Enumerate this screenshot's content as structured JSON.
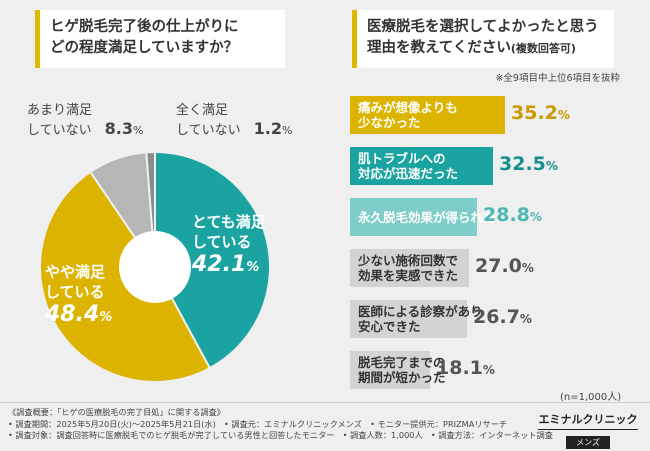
{
  "left_title": {
    "line1": "ヒゲ脱毛完了後の仕上がりに",
    "line2": "どの程度満足していますか？"
  },
  "right_title": {
    "line1": "医療脱毛を選択してよかったと思う",
    "line2_main": "理由を教えてください",
    "line2_small": "(複数回答可)"
  },
  "note": "※全9項目中上位6項目を抜粋",
  "sample_size": "(n=1,000人)",
  "chart_data": [
    {
      "type": "pie",
      "title": "ヒゲ脱毛完了後の仕上がりにどの程度満足していますか？",
      "slices": [
        {
          "line1": "とても満足",
          "line2": "している",
          "value": 42.1,
          "color": "#1aa3a0"
        },
        {
          "line1": "やや満足",
          "line2": "している",
          "value": 48.4,
          "color": "#dcb400"
        },
        {
          "line1": "あまり満足",
          "line2": "していない",
          "value": 8.3,
          "color": "#b6b6b6"
        },
        {
          "line1": "全く満足",
          "line2": "していない",
          "value": 1.2,
          "color": "#8c8c8c"
        }
      ]
    },
    {
      "type": "bar",
      "title": "医療脱毛を選択してよかったと思う理由を教えてください(複数回答可)",
      "xlim": [
        0,
        100
      ],
      "bars": [
        {
          "lines": [
            "痛みが想像よりも",
            "少なかった"
          ],
          "value": 35.2,
          "color": "#dcb400",
          "text_color": "#ffffff",
          "value_color": "#c89b00"
        },
        {
          "lines": [
            "肌トラブルへの",
            "対応が迅速だった"
          ],
          "value": 32.5,
          "color": "#1aa3a0",
          "text_color": "#ffffff",
          "value_color": "#13908d"
        },
        {
          "lines": [
            "永久脱毛効果が得られた"
          ],
          "value": 28.8,
          "color": "#7ecdc9",
          "text_color": "#ffffff",
          "value_color": "#4fb7b2"
        },
        {
          "lines": [
            "少ない施術回数で",
            "効果を実感できた"
          ],
          "value": 27.0,
          "color": "#d3d3d3",
          "text_color": "#333333",
          "value_color": "#555555"
        },
        {
          "lines": [
            "医師による診察があり",
            "安心できた"
          ],
          "value": 26.7,
          "color": "#d3d3d3",
          "text_color": "#333333",
          "value_color": "#555555"
        },
        {
          "lines": [
            "脱毛完了までの",
            "期間が短かった"
          ],
          "value": 18.1,
          "color": "#d3d3d3",
          "text_color": "#333333",
          "value_color": "#555555"
        }
      ]
    }
  ],
  "footer": {
    "line1": "《調査概要：「ヒゲの医療脱毛の完了目処」に関する調査》",
    "line2": "• 調査期間：2025年5月20日(火)〜2025年5月21日(水)　• 調査元：エミナルクリニックメンズ　• モニター提供元：PRIZMAリサーチ",
    "line3": "• 調査対象：調査回答時に医療脱毛でのヒゲ脱毛が完了している男性と回答したモニター　• 調査人数：1,000人　• 調査方法：インターネット調査"
  },
  "logo": {
    "name": "エミナルクリニック",
    "sub": "メンズ"
  }
}
